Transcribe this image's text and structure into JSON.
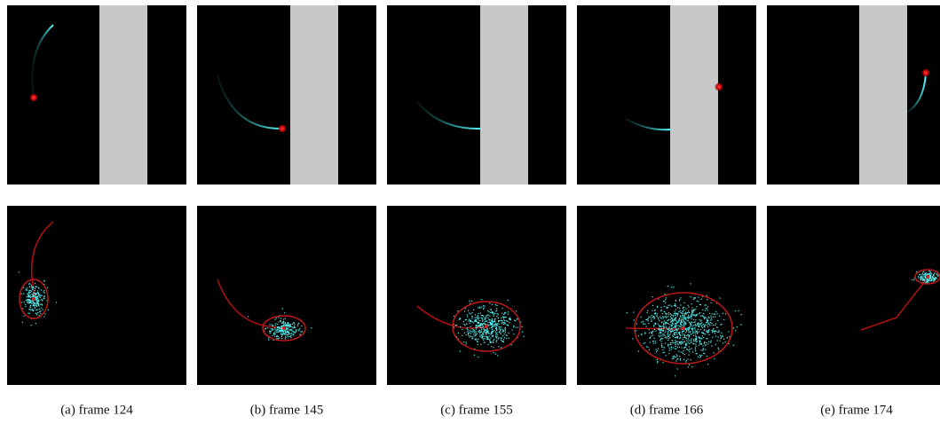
{
  "figure": {
    "panels": [
      {
        "caption": "(a) frame 124"
      },
      {
        "caption": "(b) frame 145"
      },
      {
        "caption": "(c) frame 155"
      },
      {
        "caption": "(d) frame 166"
      },
      {
        "caption": "(e) frame 174"
      }
    ]
  }
}
